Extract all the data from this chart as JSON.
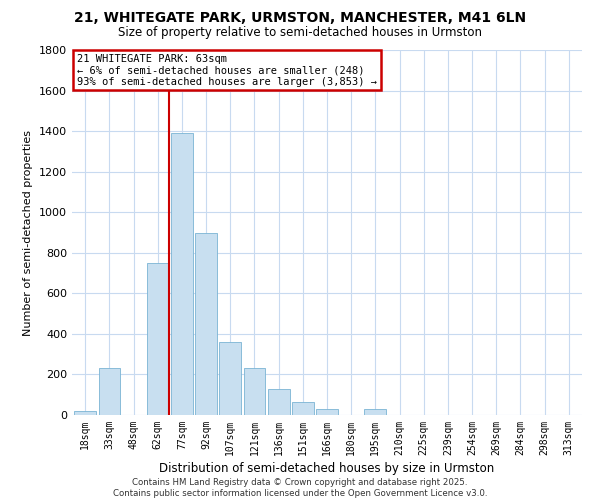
{
  "title_line1": "21, WHITEGATE PARK, URMSTON, MANCHESTER, M41 6LN",
  "title_line2": "Size of property relative to semi-detached houses in Urmston",
  "xlabel": "Distribution of semi-detached houses by size in Urmston",
  "ylabel": "Number of semi-detached properties",
  "bin_labels": [
    "18sqm",
    "33sqm",
    "48sqm",
    "62sqm",
    "77sqm",
    "92sqm",
    "107sqm",
    "121sqm",
    "136sqm",
    "151sqm",
    "166sqm",
    "180sqm",
    "195sqm",
    "210sqm",
    "225sqm",
    "239sqm",
    "254sqm",
    "269sqm",
    "284sqm",
    "298sqm",
    "313sqm"
  ],
  "bar_heights": [
    20,
    230,
    0,
    750,
    1390,
    900,
    360,
    230,
    130,
    65,
    30,
    0,
    30,
    0,
    0,
    0,
    0,
    0,
    0,
    0,
    0
  ],
  "bar_color": "#c8dff0",
  "bar_edge_color": "#7ab4d4",
  "annotation_title": "21 WHITEGATE PARK: 63sqm",
  "annotation_line1": "← 6% of semi-detached houses are smaller (248)",
  "annotation_line2": "93% of semi-detached houses are larger (3,853) →",
  "annotation_box_color": "#ffffff",
  "annotation_box_edge": "#cc0000",
  "property_line_color": "#cc0000",
  "ylim": [
    0,
    1800
  ],
  "yticks": [
    0,
    200,
    400,
    600,
    800,
    1000,
    1200,
    1400,
    1600,
    1800
  ],
  "footer_line1": "Contains HM Land Registry data © Crown copyright and database right 2025.",
  "footer_line2": "Contains public sector information licensed under the Open Government Licence v3.0.",
  "background_color": "#ffffff",
  "grid_color": "#c8daf0"
}
